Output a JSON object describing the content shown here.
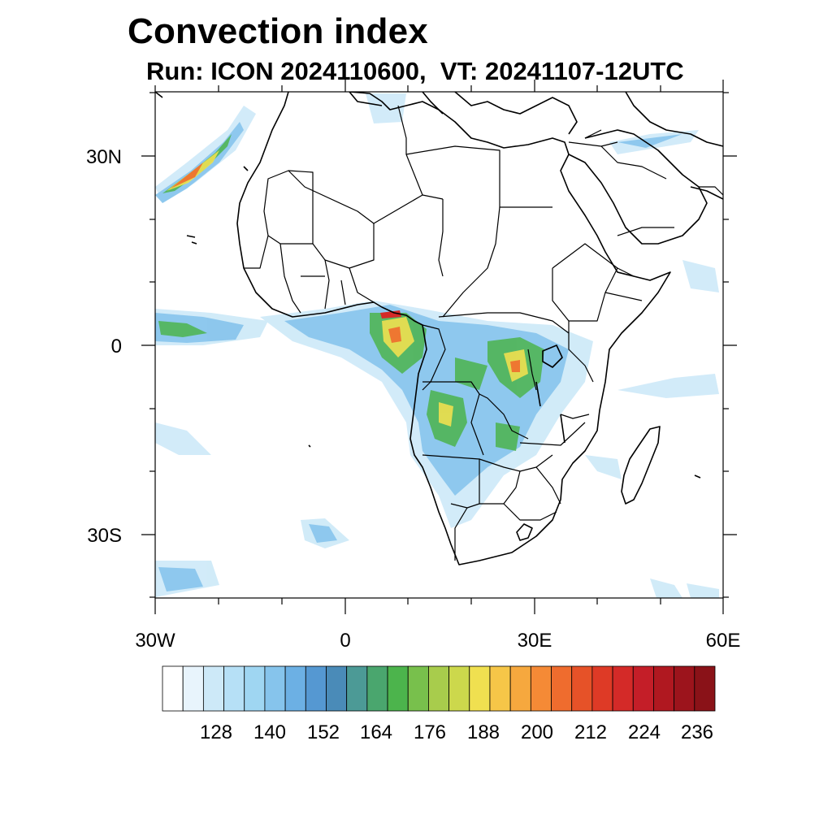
{
  "title": "Convection index",
  "subtitle": "Run: ICON 2024110600,  VT: 20241107-12UTC",
  "map": {
    "lat_labels": [
      "30N",
      "0",
      "30S"
    ],
    "lon_labels": [
      "30W",
      "0",
      "30E",
      "60E"
    ],
    "lat_range": [
      -40,
      40
    ],
    "lon_range": [
      -30,
      60
    ]
  },
  "colorbar": {
    "labels": [
      "128",
      "140",
      "152",
      "164",
      "176",
      "188",
      "200",
      "212",
      "224",
      "236"
    ],
    "colors": [
      "#ffffff",
      "#e8f4fc",
      "#cde9f8",
      "#b6e0f6",
      "#9fd6f2",
      "#86c4ec",
      "#6cb0e4",
      "#5598d2",
      "#4a8bb8",
      "#4c9a96",
      "#4aa66e",
      "#4cb44c",
      "#78c04c",
      "#a8cc4c",
      "#ccd84c",
      "#f0e050",
      "#f6c648",
      "#f6a83e",
      "#f58a36",
      "#ef6c2e",
      "#e65228",
      "#de3a26",
      "#d42a28",
      "#c41e28",
      "#b01820",
      "#9c141c",
      "#8a1218"
    ]
  }
}
